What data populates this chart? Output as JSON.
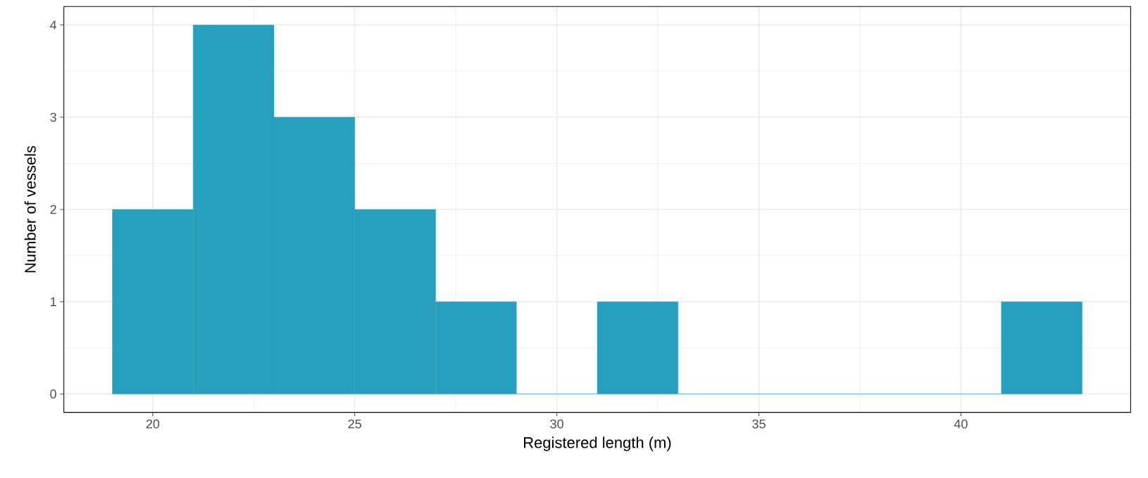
{
  "chart_data": {
    "type": "histogram",
    "xlabel": "Registered length (m)",
    "ylabel": "Number of vessels",
    "bins": [
      19,
      21,
      23,
      25,
      27,
      29,
      31,
      33,
      35,
      37,
      39,
      41,
      43
    ],
    "values": [
      2,
      4,
      3,
      2,
      1,
      0,
      1,
      0,
      0,
      0,
      0,
      1
    ],
    "color": "#279fbd",
    "xlim": [
      17.8,
      44.2
    ],
    "ylim": [
      -0.2,
      4.2
    ],
    "xticks": [
      20,
      25,
      30,
      35,
      40
    ],
    "yticks": [
      0,
      1,
      2,
      3,
      4
    ],
    "grid": true
  }
}
